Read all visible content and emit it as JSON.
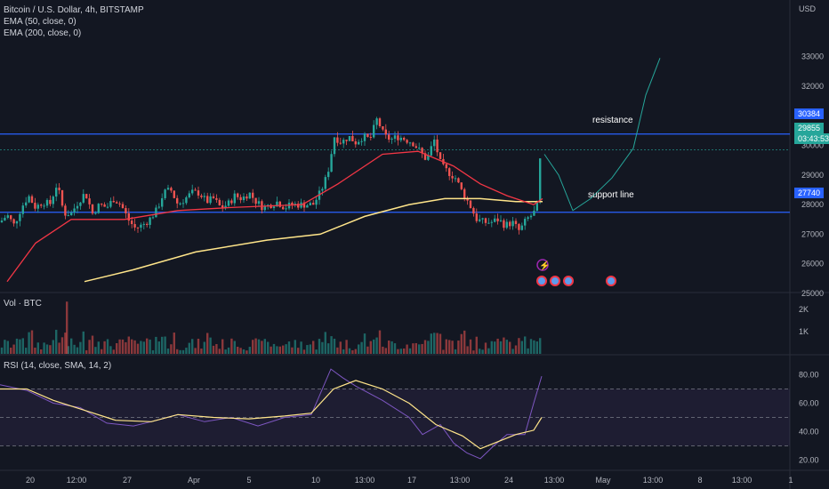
{
  "main_pane": {
    "title": "Bitcoin / U.S. Dollar, 4h, BITSTAMP",
    "ema50_label": "EMA (50, close, 0)",
    "ema200_label": "EMA (200, close, 0)",
    "currency": "USD",
    "price_ticks": [
      "33000",
      "32000",
      "31000",
      "30000",
      "29000",
      "28000",
      "27000",
      "26000",
      "25000"
    ],
    "resistance_label": "resistance",
    "support_label": "support line",
    "resistance_badge": "30384",
    "support_badge": "27740",
    "last_price_badge": "29855",
    "countdown_badge": "03:43:53",
    "colors": {
      "up": "#26a69a",
      "down": "#ef5350",
      "ema50": "#f23645",
      "ema200": "#ffe58a",
      "level": "#2962ff",
      "projection": "#26a69a"
    }
  },
  "volume_pane": {
    "title": "Vol · BTC",
    "ticks": [
      "2K",
      "1K"
    ]
  },
  "rsi_pane": {
    "title": "RSI (14, close, SMA, 14, 2)",
    "ticks": [
      "80.00",
      "60.00",
      "40.00",
      "20.00"
    ],
    "rsi_color": "#7e57c2",
    "sma_color": "#ffe58a"
  },
  "time_axis": {
    "labels": [
      "20",
      "12:00",
      "27",
      "Apr",
      "5",
      "10",
      "13:00",
      "17",
      "13:00",
      "24",
      "13:00",
      "May",
      "13:00",
      "8",
      "13:00",
      "1"
    ]
  },
  "chart_data": {
    "type": "candlestick",
    "title": "Bitcoin / U.S. Dollar, 4h, BITSTAMP",
    "ylabel": "USD",
    "ylim": [
      24500,
      33500
    ],
    "levels": {
      "resistance": 30384,
      "support": 27740
    },
    "last_price": 29855,
    "ohlc_control_points": [
      [
        0,
        27400
      ],
      [
        8,
        27650
      ],
      [
        16,
        27300
      ],
      [
        24,
        27900
      ],
      [
        32,
        28300
      ],
      [
        40,
        27900
      ],
      [
        48,
        28100
      ],
      [
        56,
        28000
      ],
      [
        64,
        28700
      ],
      [
        72,
        27700
      ],
      [
        80,
        27700
      ],
      [
        88,
        28100
      ],
      [
        96,
        28400
      ],
      [
        104,
        27700
      ],
      [
        112,
        28000
      ],
      [
        120,
        27900
      ],
      [
        128,
        28200
      ],
      [
        136,
        28000
      ],
      [
        144,
        27500
      ],
      [
        152,
        27200
      ],
      [
        160,
        27300
      ],
      [
        168,
        27500
      ],
      [
        176,
        27800
      ],
      [
        184,
        28400
      ],
      [
        192,
        28500
      ],
      [
        200,
        28000
      ],
      [
        208,
        28200
      ],
      [
        216,
        28400
      ],
      [
        224,
        28400
      ],
      [
        232,
        28100
      ],
      [
        240,
        28200
      ],
      [
        248,
        27900
      ],
      [
        256,
        28000
      ],
      [
        264,
        28300
      ],
      [
        272,
        28200
      ],
      [
        280,
        28400
      ],
      [
        288,
        28100
      ],
      [
        296,
        27900
      ],
      [
        304,
        28000
      ],
      [
        312,
        28100
      ],
      [
        320,
        27900
      ],
      [
        328,
        28000
      ],
      [
        336,
        28000
      ],
      [
        344,
        28000
      ],
      [
        352,
        28000
      ],
      [
        360,
        28400
      ],
      [
        368,
        29000
      ],
      [
        376,
        30300
      ],
      [
        384,
        30100
      ],
      [
        392,
        30300
      ],
      [
        400,
        30100
      ],
      [
        408,
        30300
      ],
      [
        416,
        30200
      ],
      [
        424,
        30900
      ],
      [
        432,
        30300
      ],
      [
        440,
        30200
      ],
      [
        448,
        30300
      ],
      [
        456,
        30200
      ],
      [
        464,
        30100
      ],
      [
        472,
        29800
      ],
      [
        480,
        29500
      ],
      [
        488,
        30200
      ],
      [
        496,
        29300
      ],
      [
        504,
        29100
      ],
      [
        512,
        28900
      ],
      [
        520,
        28400
      ],
      [
        528,
        28000
      ],
      [
        536,
        27500
      ],
      [
        544,
        27400
      ],
      [
        552,
        27400
      ],
      [
        560,
        27500
      ],
      [
        568,
        27300
      ],
      [
        576,
        27400
      ],
      [
        584,
        27100
      ],
      [
        592,
        27500
      ],
      [
        600,
        27700
      ],
      [
        604,
        28000
      ],
      [
        608,
        29855
      ]
    ],
    "projection": [
      [
        612,
        29700
      ],
      [
        628,
        29000
      ],
      [
        644,
        27800
      ],
      [
        664,
        28200
      ],
      [
        688,
        28900
      ],
      [
        712,
        29900
      ],
      [
        726,
        31700
      ],
      [
        742,
        32950
      ]
    ],
    "ema50": [
      [
        8,
        25400
      ],
      [
        40,
        26700
      ],
      [
        80,
        27500
      ],
      [
        140,
        27500
      ],
      [
        200,
        27800
      ],
      [
        260,
        27900
      ],
      [
        340,
        28000
      ],
      [
        380,
        28700
      ],
      [
        430,
        29700
      ],
      [
        470,
        29800
      ],
      [
        510,
        29300
      ],
      [
        540,
        28700
      ],
      [
        570,
        28300
      ],
      [
        600,
        28000
      ],
      [
        610,
        28200
      ]
    ],
    "ema200": [
      [
        95,
        25400
      ],
      [
        150,
        25800
      ],
      [
        220,
        26400
      ],
      [
        300,
        26800
      ],
      [
        360,
        27000
      ],
      [
        410,
        27600
      ],
      [
        460,
        28000
      ],
      [
        500,
        28200
      ],
      [
        540,
        28200
      ],
      [
        580,
        28100
      ],
      [
        610,
        28100
      ]
    ],
    "volume": {
      "ylim": [
        0,
        2500
      ]
    },
    "rsi": {
      "ylim": [
        15,
        90
      ],
      "rsi": [
        [
          0,
          73
        ],
        [
          30,
          69
        ],
        [
          60,
          60
        ],
        [
          90,
          57
        ],
        [
          120,
          46
        ],
        [
          150,
          44
        ],
        [
          170,
          47
        ],
        [
          200,
          52
        ],
        [
          230,
          47
        ],
        [
          260,
          50
        ],
        [
          290,
          44
        ],
        [
          320,
          50
        ],
        [
          350,
          52
        ],
        [
          372,
          84
        ],
        [
          385,
          78
        ],
        [
          400,
          72
        ],
        [
          430,
          62
        ],
        [
          460,
          50
        ],
        [
          475,
          38
        ],
        [
          495,
          45
        ],
        [
          510,
          32
        ],
        [
          525,
          25
        ],
        [
          540,
          21
        ],
        [
          555,
          30
        ],
        [
          570,
          38
        ],
        [
          590,
          38
        ],
        [
          600,
          60
        ],
        [
          609,
          79
        ]
      ],
      "sma": [
        [
          0,
          70
        ],
        [
          30,
          70
        ],
        [
          60,
          62
        ],
        [
          100,
          54
        ],
        [
          130,
          48
        ],
        [
          170,
          47
        ],
        [
          200,
          52
        ],
        [
          240,
          50
        ],
        [
          280,
          49
        ],
        [
          320,
          51
        ],
        [
          350,
          53
        ],
        [
          375,
          70
        ],
        [
          400,
          76
        ],
        [
          430,
          70
        ],
        [
          460,
          60
        ],
        [
          490,
          45
        ],
        [
          520,
          37
        ],
        [
          540,
          28
        ],
        [
          560,
          33
        ],
        [
          580,
          38
        ],
        [
          600,
          41
        ],
        [
          609,
          50
        ]
      ]
    }
  }
}
